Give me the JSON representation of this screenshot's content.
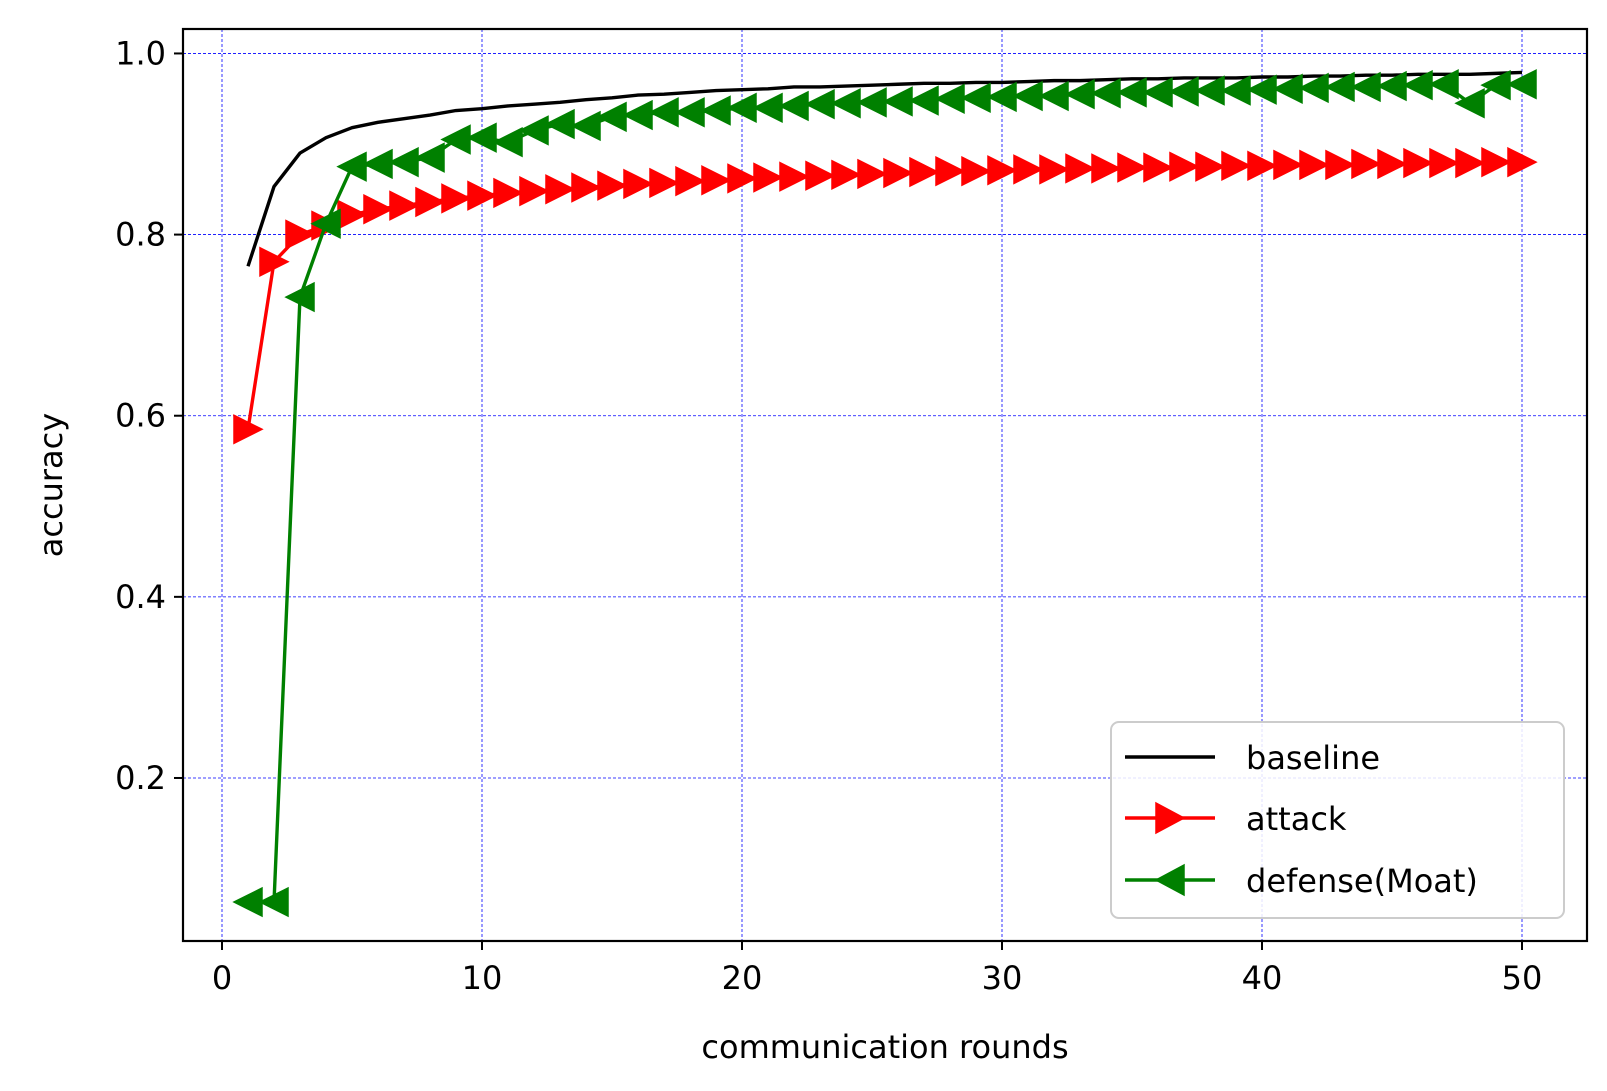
{
  "chart_data": {
    "type": "line",
    "title": "",
    "xlabel": "communication rounds",
    "ylabel": "accuracy",
    "xlim": [
      -1.5,
      52.5
    ],
    "ylim": [
      0.02,
      1.027
    ],
    "xticks": [
      0,
      10,
      20,
      30,
      40,
      50
    ],
    "xtick_labels": [
      "0",
      "10",
      "20",
      "30",
      "40",
      "50"
    ],
    "yticks": [
      0.2,
      0.4,
      0.6,
      0.8,
      1.0
    ],
    "ytick_labels": [
      "0.2",
      "0.4",
      "0.6",
      "0.8",
      "1.0"
    ],
    "grid": true,
    "grid_color": "#0000ff",
    "legend_position": "lower right",
    "x": [
      1,
      2,
      3,
      4,
      5,
      6,
      7,
      8,
      9,
      10,
      11,
      12,
      13,
      14,
      15,
      16,
      17,
      18,
      19,
      20,
      21,
      22,
      23,
      24,
      25,
      26,
      27,
      28,
      29,
      30,
      31,
      32,
      33,
      34,
      35,
      36,
      37,
      38,
      39,
      40,
      41,
      42,
      43,
      44,
      45,
      46,
      47,
      48,
      49,
      50
    ],
    "series": [
      {
        "name": "baseline",
        "color": "#000000",
        "marker": "none",
        "values": [
          0.765,
          0.853,
          0.89,
          0.907,
          0.918,
          0.924,
          0.928,
          0.932,
          0.937,
          0.939,
          0.942,
          0.944,
          0.946,
          0.949,
          0.951,
          0.954,
          0.955,
          0.957,
          0.959,
          0.96,
          0.961,
          0.963,
          0.963,
          0.964,
          0.965,
          0.966,
          0.967,
          0.967,
          0.968,
          0.968,
          0.969,
          0.97,
          0.97,
          0.971,
          0.972,
          0.972,
          0.973,
          0.973,
          0.973,
          0.974,
          0.974,
          0.975,
          0.975,
          0.976,
          0.976,
          0.977,
          0.977,
          0.977,
          0.978,
          0.979
        ]
      },
      {
        "name": "attack",
        "color": "#ff0000",
        "marker": "triangle-right",
        "values": [
          0.585,
          0.77,
          0.8,
          0.81,
          0.822,
          0.828,
          0.832,
          0.836,
          0.84,
          0.843,
          0.846,
          0.848,
          0.85,
          0.852,
          0.854,
          0.856,
          0.857,
          0.859,
          0.86,
          0.862,
          0.863,
          0.864,
          0.865,
          0.866,
          0.867,
          0.868,
          0.869,
          0.87,
          0.87,
          0.871,
          0.872,
          0.872,
          0.873,
          0.873,
          0.874,
          0.874,
          0.875,
          0.875,
          0.876,
          0.876,
          0.877,
          0.877,
          0.877,
          0.878,
          0.878,
          0.879,
          0.879,
          0.879,
          0.88,
          0.88
        ]
      },
      {
        "name": "defense(Moat)",
        "color": "#008000",
        "marker": "triangle-left",
        "values": [
          0.063,
          0.063,
          0.731,
          0.812,
          0.875,
          0.878,
          0.88,
          0.885,
          0.905,
          0.907,
          0.902,
          0.915,
          0.922,
          0.92,
          0.93,
          0.932,
          0.935,
          0.935,
          0.937,
          0.94,
          0.94,
          0.942,
          0.944,
          0.945,
          0.946,
          0.947,
          0.948,
          0.95,
          0.951,
          0.952,
          0.953,
          0.953,
          0.955,
          0.956,
          0.957,
          0.957,
          0.958,
          0.959,
          0.959,
          0.96,
          0.961,
          0.962,
          0.963,
          0.963,
          0.964,
          0.965,
          0.966,
          0.945,
          0.965,
          0.966
        ]
      }
    ]
  }
}
